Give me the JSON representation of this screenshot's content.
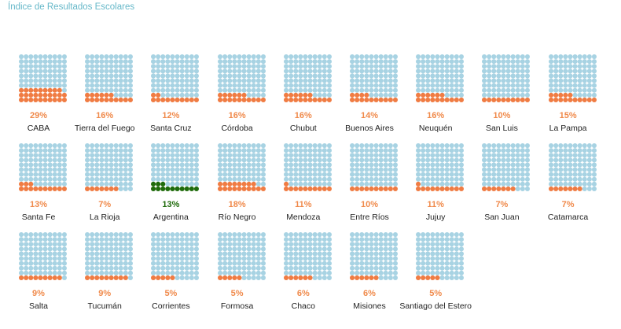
{
  "title": "Índice de Resultados Escolares",
  "colors": {
    "empty": "#a8d3e3",
    "filled": "#f07c43",
    "filled_highlight": "#1f6b0b",
    "pct_text": "#f08a4b",
    "pct_text_highlight": "#1f6b0b",
    "title_text": "#66b8c9"
  },
  "chart_data": {
    "type": "waffle",
    "grid_rows": 10,
    "grid_cols": 10,
    "highlight": "Argentina",
    "items": [
      {
        "name": "CABA",
        "value": 29,
        "label": "29%"
      },
      {
        "name": "Tierra del Fuego",
        "value": 16,
        "label": "16%"
      },
      {
        "name": "Santa Cruz",
        "value": 12,
        "label": "12%"
      },
      {
        "name": "Córdoba",
        "value": 16,
        "label": "16%"
      },
      {
        "name": "Chubut",
        "value": 16,
        "label": "16%"
      },
      {
        "name": "Buenos Aires",
        "value": 14,
        "label": "14%"
      },
      {
        "name": "Neuquén",
        "value": 16,
        "label": "16%"
      },
      {
        "name": "San Luis",
        "value": 10,
        "label": "10%"
      },
      {
        "name": "La Pampa",
        "value": 15,
        "label": "15%"
      },
      {
        "name": "Santa Fe",
        "value": 13,
        "label": "13%"
      },
      {
        "name": "La Rioja",
        "value": 7,
        "label": "7%"
      },
      {
        "name": "Argentina",
        "value": 13,
        "label": "13%"
      },
      {
        "name": "Río Negro",
        "value": 18,
        "label": "18%"
      },
      {
        "name": "Mendoza",
        "value": 11,
        "label": "11%"
      },
      {
        "name": "Entre Ríos",
        "value": 10,
        "label": "10%"
      },
      {
        "name": "Jujuy",
        "value": 11,
        "label": "11%"
      },
      {
        "name": "San Juan",
        "value": 7,
        "label": "7%"
      },
      {
        "name": "Catamarca",
        "value": 7,
        "label": "7%"
      },
      {
        "name": "Salta",
        "value": 9,
        "label": "9%"
      },
      {
        "name": "Tucumán",
        "value": 9,
        "label": "9%"
      },
      {
        "name": "Corrientes",
        "value": 5,
        "label": "5%"
      },
      {
        "name": "Formosa",
        "value": 5,
        "label": "5%"
      },
      {
        "name": "Chaco",
        "value": 6,
        "label": "6%"
      },
      {
        "name": "Misiones",
        "value": 6,
        "label": "6%"
      },
      {
        "name": "Santiago del Estero",
        "value": 5,
        "label": "5%"
      }
    ]
  }
}
